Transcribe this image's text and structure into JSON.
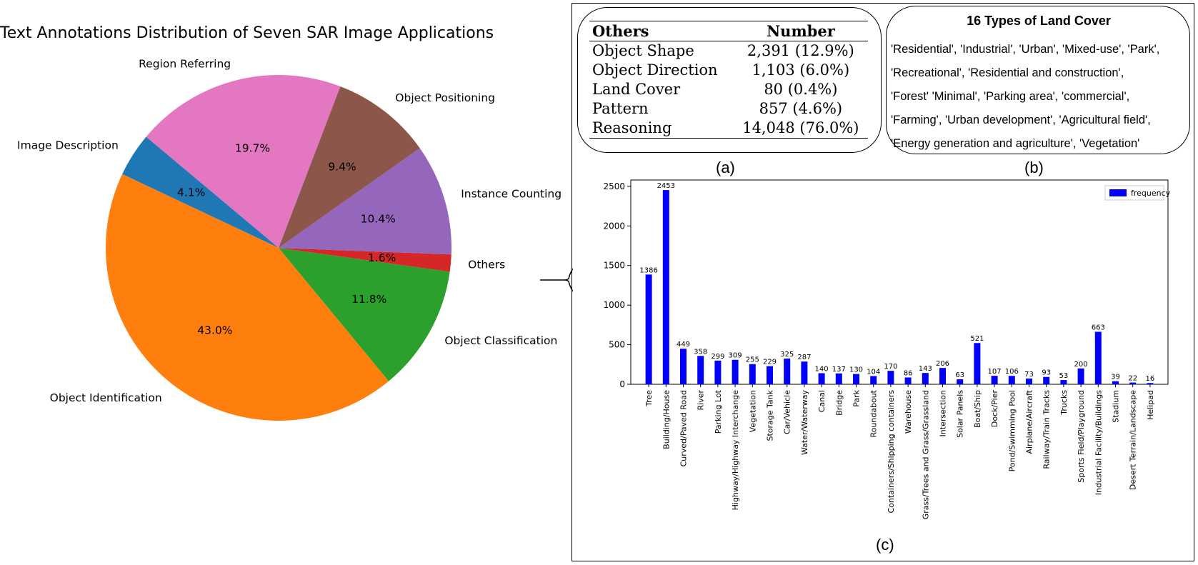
{
  "chart_data": [
    {
      "type": "pie",
      "title": "Text Annotations Distribution of Seven SAR Image Applications",
      "slices": [
        {
          "label": "Image Description",
          "value": 4.1,
          "display": "4.1%",
          "color": "#1f77b4"
        },
        {
          "label": "Object Identification",
          "value": 43.0,
          "display": "43.0%",
          "color": "#ff7f0e"
        },
        {
          "label": "Object Classification",
          "value": 11.8,
          "display": "11.8%",
          "color": "#2ca02c"
        },
        {
          "label": "Others",
          "value": 1.6,
          "display": "1.6%",
          "color": "#d62728"
        },
        {
          "label": "Instance Counting",
          "value": 10.4,
          "display": "10.4%",
          "color": "#9467bd"
        },
        {
          "label": "Object Positioning",
          "value": 9.4,
          "display": "9.4%",
          "color": "#8c564b"
        },
        {
          "label": "Region Referring",
          "value": 19.7,
          "display": "19.7%",
          "color": "#e377c2"
        }
      ]
    },
    {
      "type": "table",
      "caption": "(a)",
      "columns": [
        "Others",
        "Number"
      ],
      "rows": [
        [
          "Object Shape",
          "2,391 (12.9%)"
        ],
        [
          "Object Direction",
          "1,103 (6.0%)"
        ],
        [
          "Land Cover",
          "80 (0.4%)"
        ],
        [
          "Pattern",
          "857 (4.6%)"
        ],
        [
          "Reasoning",
          "14,048 (76.0%)"
        ]
      ]
    },
    {
      "type": "bar",
      "caption": "(c)",
      "legend": "frequency",
      "legend_position": "top-right",
      "color": "#0000ff",
      "ylim": [
        0,
        2580
      ],
      "yticks": [
        0,
        500,
        1000,
        1500,
        2000,
        2500
      ],
      "categories": [
        "Tree",
        "Building/House",
        "Curved/Paved Road",
        "River",
        "Parking Lot",
        "Highway/Highway Interchange",
        "Vegetation",
        "Storage Tank",
        "Car/Vehicle",
        "Water/Waterway",
        "Canal",
        "Bridge",
        "Park",
        "Roundabout",
        "Containers/Shipping containers",
        "Warehouse",
        "Grass/Trees and Grass/Grassland",
        "Intersection",
        "Solar Panels",
        "Boat/Ship",
        "Dock/Pier",
        "Pond/Swimming Pool",
        "Airplane/Aircraft",
        "Railway/Train Tracks",
        "Trucks",
        "Sports Field/Playground",
        "Industrial Facility/Buildings",
        "Stadium",
        "Desert Terrain/Landscape",
        "Helipad"
      ],
      "values": [
        1386,
        2453,
        449,
        358,
        299,
        309,
        255,
        229,
        325,
        287,
        140,
        137,
        130,
        104,
        170,
        86,
        143,
        206,
        63,
        521,
        107,
        106,
        73,
        93,
        53,
        200,
        663,
        39,
        22,
        16
      ]
    }
  ],
  "land_cover": {
    "caption": "(b)",
    "title": "16 Types of Land Cover",
    "lines": [
      "'Residential', 'Industrial', 'Urban', 'Mixed-use', 'Park',",
      "'Recreational', 'Residential and construction',",
      "'Forest' 'Minimal', 'Parking area',  'commercial',",
      "'Farming', 'Urban development', 'Agricultural field',",
      "'Energy generation and agriculture', 'Vegetation'"
    ]
  }
}
